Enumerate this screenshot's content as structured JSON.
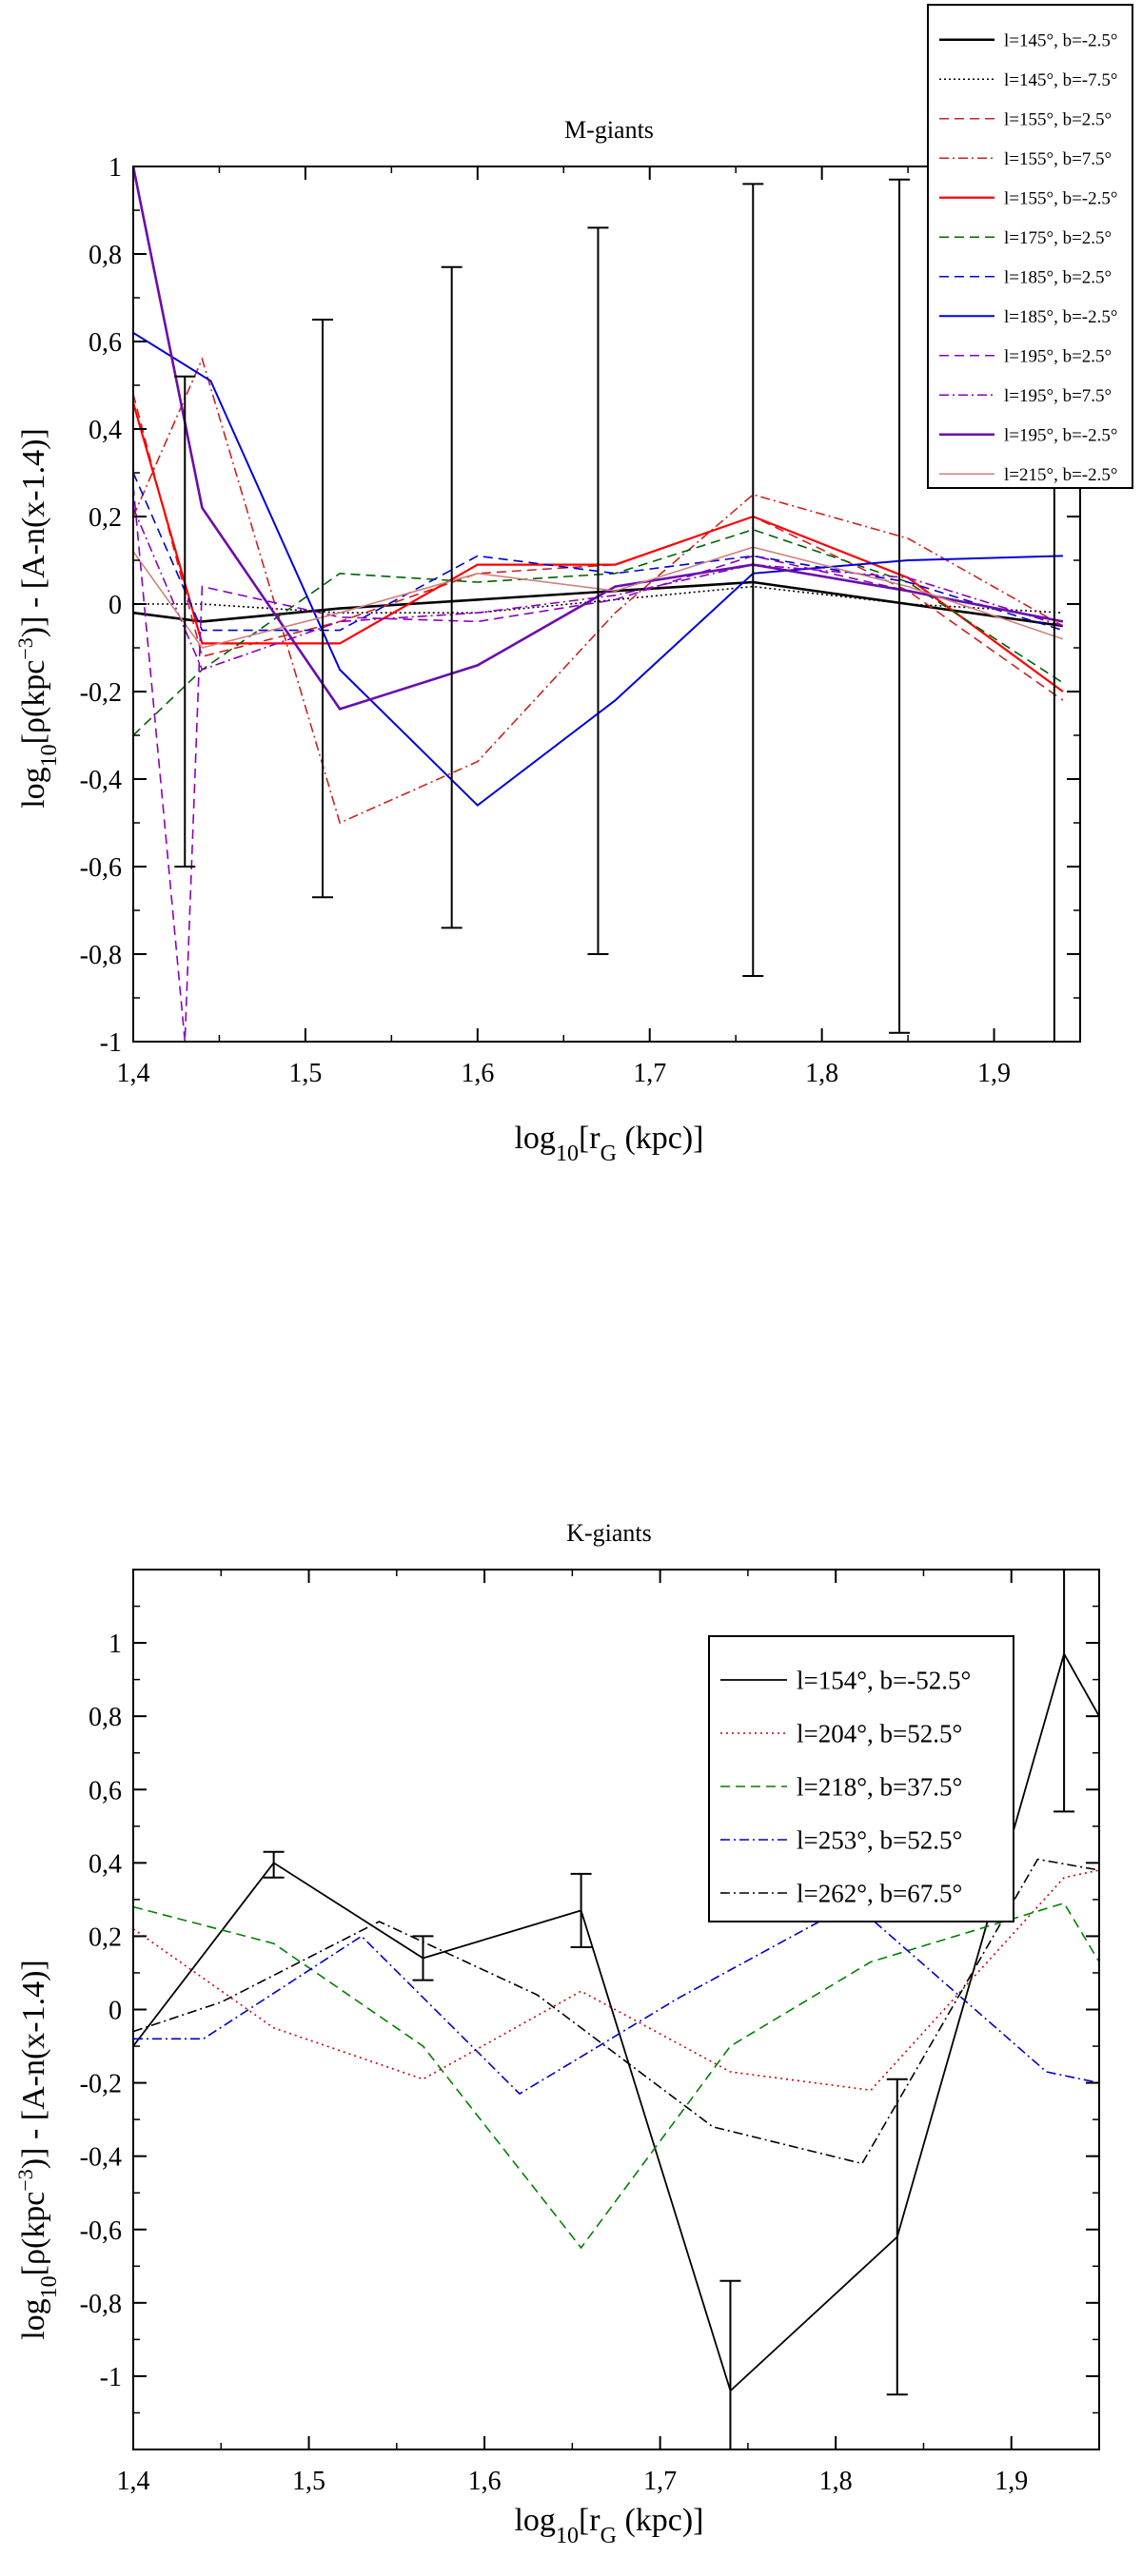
{
  "chart_data": [
    {
      "type": "line",
      "title": "M-giants",
      "xlabel": "log10[rG (kpc)]",
      "ylabel": "log10[ρ(kpc⁻³)] - [A-n(x-1.4)]",
      "xlim": [
        1.4,
        1.95
      ],
      "ylim": [
        -1,
        1
      ],
      "xticks": [
        "1,4",
        "1,5",
        "1,6",
        "1,7",
        "1,8",
        "1,9"
      ],
      "yticks": [
        "-1",
        "-0,8",
        "-0,6",
        "-0,4",
        "-0,2",
        "0",
        "0,2",
        "0,4",
        "0,6",
        "0,8",
        "1"
      ],
      "grid": false,
      "legend_position": "top-right, outside",
      "error_bars": [
        {
          "x": 1.43,
          "low": -0.6,
          "high": 0.52
        },
        {
          "x": 1.51,
          "low": -0.67,
          "high": 0.65
        },
        {
          "x": 1.585,
          "low": -0.74,
          "high": 0.77
        },
        {
          "x": 1.67,
          "low": -0.8,
          "high": 0.86
        },
        {
          "x": 1.76,
          "low": -0.85,
          "high": 0.96
        },
        {
          "x": 1.845,
          "low": -0.98,
          "high": 0.97
        },
        {
          "x": 1.935,
          "low": -1.0,
          "high": 0.98
        }
      ],
      "series": [
        {
          "name": "l=145°, b=-2.5°",
          "color": "#000000",
          "width": 2.6,
          "dash": "",
          "x": [
            1.4,
            1.44,
            1.52,
            1.6,
            1.68,
            1.76,
            1.85,
            1.94
          ],
          "y": [
            -0.02,
            -0.04,
            -0.01,
            0.01,
            0.03,
            0.05,
            0.0,
            -0.05
          ]
        },
        {
          "name": "l=145°, b=-7.5°",
          "color": "#000000",
          "width": 1.6,
          "dash": "2,3",
          "x": [
            1.4,
            1.44,
            1.52,
            1.6,
            1.68,
            1.76,
            1.85,
            1.94
          ],
          "y": [
            0.0,
            0.0,
            -0.02,
            -0.02,
            0.01,
            0.04,
            0.0,
            -0.02
          ]
        },
        {
          "name": "l=155°, b=2.5°",
          "color": "#cc2222",
          "width": 1.6,
          "dash": "10,6",
          "x": [
            1.4,
            1.44,
            1.52,
            1.6,
            1.68,
            1.76,
            1.85,
            1.94
          ],
          "y": [
            0.48,
            -0.12,
            -0.04,
            0.07,
            0.09,
            0.2,
            0.03,
            -0.22
          ]
        },
        {
          "name": "l=155°, b=7.5°",
          "color": "#cc2222",
          "width": 1.6,
          "dash": "10,4,2,4",
          "x": [
            1.4,
            1.44,
            1.52,
            1.6,
            1.68,
            1.76,
            1.85,
            1.94
          ],
          "y": [
            0.2,
            0.56,
            -0.5,
            -0.36,
            -0.02,
            0.25,
            0.15,
            -0.05
          ]
        },
        {
          "name": "l=155°, b=-2.5°",
          "color": "#ff0000",
          "width": 2.2,
          "dash": "",
          "x": [
            1.4,
            1.44,
            1.52,
            1.6,
            1.68,
            1.76,
            1.85,
            1.94
          ],
          "y": [
            0.46,
            -0.09,
            -0.09,
            0.09,
            0.09,
            0.2,
            0.06,
            -0.2
          ]
        },
        {
          "name": "l=175°, b=2.5°",
          "color": "#006400",
          "width": 1.6,
          "dash": "10,6",
          "x": [
            1.4,
            1.44,
            1.52,
            1.6,
            1.68,
            1.76,
            1.85,
            1.94
          ],
          "y": [
            -0.3,
            -0.15,
            0.07,
            0.05,
            0.07,
            0.17,
            0.05,
            -0.18
          ]
        },
        {
          "name": "l=185°, b=2.5°",
          "color": "#0000cc",
          "width": 1.6,
          "dash": "10,6",
          "x": [
            1.4,
            1.44,
            1.52,
            1.6,
            1.68,
            1.76,
            1.85,
            1.94
          ],
          "y": [
            0.3,
            -0.06,
            -0.06,
            0.11,
            0.07,
            0.11,
            0.05,
            -0.06
          ]
        },
        {
          "name": "l=185°, b=-2.5°",
          "color": "#0000dd",
          "width": 2.0,
          "dash": "",
          "x": [
            1.4,
            1.445,
            1.52,
            1.6,
            1.68,
            1.76,
            1.85,
            1.94
          ],
          "y": [
            0.62,
            0.51,
            -0.15,
            -0.46,
            -0.22,
            0.07,
            0.1,
            0.11
          ]
        },
        {
          "name": "l=195°, b=2.5°",
          "color": "#8b00bb",
          "width": 1.6,
          "dash": "10,6",
          "x": [
            1.4,
            1.43,
            1.44,
            1.52,
            1.6,
            1.68,
            1.76,
            1.85,
            1.94
          ],
          "y": [
            0.27,
            -1.0,
            0.04,
            -0.03,
            -0.04,
            0.01,
            0.11,
            0.03,
            -0.04
          ]
        },
        {
          "name": "l=195°, b=7.5°",
          "color": "#8b00bb",
          "width": 1.6,
          "dash": "10,4,2,4",
          "x": [
            1.4,
            1.44,
            1.52,
            1.6,
            1.68,
            1.76,
            1.85,
            1.94
          ],
          "y": [
            0.22,
            -0.15,
            -0.04,
            -0.02,
            0.02,
            0.09,
            0.06,
            -0.05
          ]
        },
        {
          "name": "l=195°, b=-2.5°",
          "color": "#6a0dad",
          "width": 2.6,
          "dash": "",
          "x": [
            1.4,
            1.44,
            1.52,
            1.6,
            1.68,
            1.76,
            1.85,
            1.94
          ],
          "y": [
            1.0,
            0.22,
            -0.24,
            -0.14,
            0.04,
            0.09,
            0.03,
            -0.04
          ]
        },
        {
          "name": "l=215°, b=-2.5°",
          "color": "#d08080",
          "width": 1.6,
          "dash": "",
          "x": [
            1.4,
            1.44,
            1.52,
            1.6,
            1.68,
            1.76,
            1.85,
            1.94
          ],
          "y": [
            0.12,
            -0.1,
            -0.02,
            0.07,
            0.03,
            0.13,
            0.04,
            -0.08
          ]
        }
      ]
    },
    {
      "type": "line",
      "title": "K-giants",
      "xlabel": "log10[rG (kpc)]",
      "ylabel": "log10[ρ(kpc⁻³)] - [A-n(x-1.4)]",
      "xlim": [
        1.4,
        1.95
      ],
      "ylim": [
        -1.2,
        1.2
      ],
      "xticks": [
        "1,4",
        "1,5",
        "1,6",
        "1,7",
        "1,8",
        "1,9"
      ],
      "yticks": [
        "-1",
        "-0,8",
        "-0,6",
        "-0,4",
        "-0,2",
        "0",
        "0,2",
        "0,4",
        "0,6",
        "0,8",
        "1"
      ],
      "grid": false,
      "legend_position": "top-right, inside",
      "error_bars": [
        {
          "x": 1.48,
          "low": 0.36,
          "high": 0.43
        },
        {
          "x": 1.565,
          "low": 0.08,
          "high": 0.2
        },
        {
          "x": 1.655,
          "low": 0.17,
          "high": 0.37
        },
        {
          "x": 1.74,
          "low": -1.2,
          "high": -0.74
        },
        {
          "x": 1.835,
          "low": -1.05,
          "high": -0.19
        },
        {
          "x": 1.93,
          "low": 0.54,
          "high": 1.2
        }
      ],
      "series": [
        {
          "name": "l=154°, b=-52.5°",
          "color": "#000000",
          "width": 1.8,
          "dash": "",
          "x": [
            1.4,
            1.48,
            1.565,
            1.655,
            1.74,
            1.835,
            1.93,
            1.95
          ],
          "y": [
            -0.1,
            0.4,
            0.14,
            0.27,
            -1.04,
            -0.62,
            0.97,
            0.8
          ]
        },
        {
          "name": "l=204°, b=52.5°",
          "color": "#cc0000",
          "width": 1.6,
          "dash": "2,4",
          "x": [
            1.4,
            1.48,
            1.565,
            1.655,
            1.74,
            1.82,
            1.93,
            1.95
          ],
          "y": [
            0.22,
            -0.05,
            -0.19,
            0.05,
            -0.17,
            -0.22,
            0.36,
            0.38
          ]
        },
        {
          "name": "l=218°, b=37.5°",
          "color": "#008000",
          "width": 1.6,
          "dash": "10,6",
          "x": [
            1.4,
            1.48,
            1.565,
            1.655,
            1.74,
            1.82,
            1.93,
            1.95
          ],
          "y": [
            0.28,
            0.18,
            -0.1,
            -0.65,
            -0.1,
            0.13,
            0.29,
            0.13
          ]
        },
        {
          "name": "l=253°, b=52.5°",
          "color": "#0000cc",
          "width": 1.6,
          "dash": "10,4,2,4",
          "x": [
            1.4,
            1.44,
            1.53,
            1.62,
            1.71,
            1.81,
            1.92,
            1.95
          ],
          "y": [
            -0.08,
            -0.08,
            0.2,
            -0.23,
            0.03,
            0.29,
            -0.17,
            -0.2
          ]
        },
        {
          "name": "l=262°, b=67.5°",
          "color": "#000000",
          "width": 1.6,
          "dash": "10,4,2,4",
          "x": [
            1.4,
            1.45,
            1.54,
            1.63,
            1.73,
            1.815,
            1.915,
            1.95
          ],
          "y": [
            -0.06,
            0.02,
            0.24,
            0.04,
            -0.32,
            -0.42,
            0.41,
            0.38
          ]
        }
      ]
    }
  ]
}
